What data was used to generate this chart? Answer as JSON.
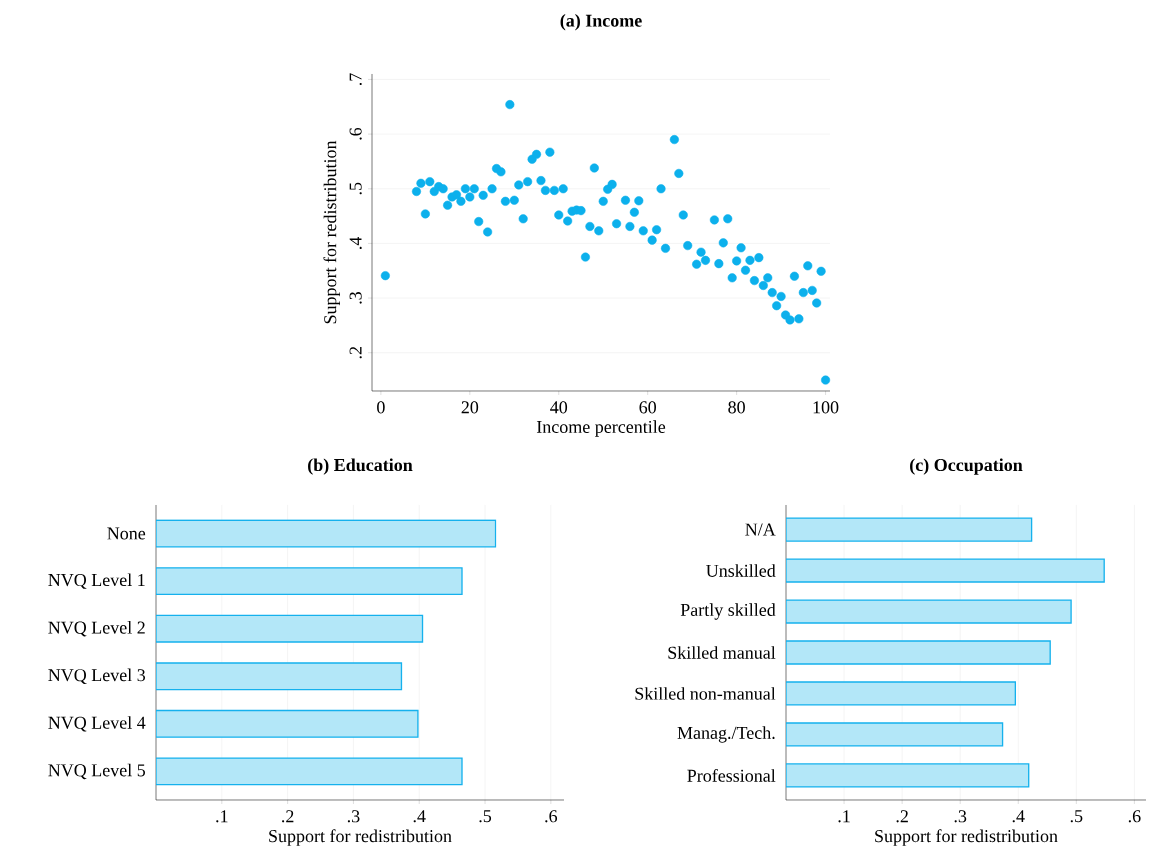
{
  "chart_data": [
    {
      "type": "scatter",
      "title": "(a) Income",
      "xlabel": "Income percentile",
      "ylabel": "Support for redistribution",
      "x": [
        1,
        8,
        9,
        10,
        11,
        12,
        13,
        14,
        15,
        16,
        17,
        18,
        19,
        20,
        21,
        22,
        23,
        24,
        25,
        26,
        27,
        28,
        29,
        30,
        31,
        32,
        33,
        34,
        35,
        36,
        37,
        38,
        39,
        40,
        41,
        42,
        43,
        44,
        45,
        46,
        47,
        48,
        49,
        50,
        51,
        52,
        53,
        55,
        56,
        57,
        58,
        59,
        61,
        62,
        63,
        64,
        66,
        67,
        68,
        69,
        71,
        72,
        73,
        75,
        76,
        77,
        78,
        79,
        80,
        81,
        82,
        83,
        84,
        85,
        86,
        87,
        88,
        89,
        90,
        91,
        92,
        93,
        94,
        95,
        96,
        97,
        98,
        99,
        100
      ],
      "values": [
        0.341,
        0.495,
        0.51,
        0.454,
        0.513,
        0.495,
        0.504,
        0.5,
        0.47,
        0.485,
        0.489,
        0.477,
        0.5,
        0.485,
        0.5,
        0.44,
        0.488,
        0.421,
        0.5,
        0.537,
        0.531,
        0.477,
        0.654,
        0.479,
        0.507,
        0.445,
        0.513,
        0.554,
        0.563,
        0.515,
        0.497,
        0.567,
        0.497,
        0.452,
        0.5,
        0.441,
        0.459,
        0.461,
        0.46,
        0.375,
        0.431,
        0.538,
        0.423,
        0.477,
        0.499,
        0.508,
        0.436,
        0.479,
        0.431,
        0.457,
        0.478,
        0.423,
        0.406,
        0.425,
        0.5,
        0.391,
        0.59,
        0.528,
        0.452,
        0.396,
        0.362,
        0.384,
        0.369,
        0.443,
        0.363,
        0.401,
        0.445,
        0.337,
        0.368,
        0.392,
        0.351,
        0.369,
        0.332,
        0.374,
        0.323,
        0.337,
        0.31,
        0.286,
        0.303,
        0.269,
        0.26,
        0.34,
        0.262,
        0.31,
        0.359,
        0.314,
        0.291,
        0.349,
        0.15
      ],
      "color": "#0cb0ec",
      "marker": "circle",
      "grid": "y",
      "xlim": [
        -2,
        101
      ],
      "xticks": [
        0,
        20,
        40,
        60,
        80,
        100
      ],
      "ylim": [
        0.13,
        0.71
      ],
      "yticks": [
        {
          "value": 0.2,
          "label": ".2"
        },
        {
          "value": 0.3,
          "label": ".3"
        },
        {
          "value": 0.4,
          "label": ".4"
        },
        {
          "value": 0.5,
          "label": ".5"
        },
        {
          "value": 0.6,
          "label": ".6"
        },
        {
          "value": 0.7,
          "label": ".7"
        }
      ]
    },
    {
      "type": "bar",
      "orientation": "horizontal",
      "title": "(b) Education",
      "xlabel": "Support for redistribution",
      "categories": [
        "None",
        "NVQ Level 1",
        "NVQ Level 2",
        "NVQ Level 3",
        "NVQ Level 4",
        "NVQ Level 5"
      ],
      "values": [
        0.516,
        0.465,
        0.405,
        0.373,
        0.398,
        0.465
      ],
      "color": "#b3e7f8",
      "grid": "x",
      "xlim": [
        0,
        0.62
      ],
      "xticks": [
        {
          "value": 0.1,
          "label": ".1"
        },
        {
          "value": 0.2,
          "label": ".2"
        },
        {
          "value": 0.3,
          "label": ".3"
        },
        {
          "value": 0.4,
          "label": ".4"
        },
        {
          "value": 0.5,
          "label": ".5"
        },
        {
          "value": 0.6,
          "label": ".6"
        }
      ]
    },
    {
      "type": "bar",
      "orientation": "horizontal",
      "title": "(c) Occupation",
      "xlabel": "Support for redistribution",
      "categories": [
        "N/A",
        "Unskilled",
        "Partly skilled",
        "Skilled manual",
        "Skilled non-manual",
        "Manag./Tech.",
        "Professional"
      ],
      "values": [
        0.423,
        0.548,
        0.491,
        0.455,
        0.395,
        0.373,
        0.418
      ],
      "color": "#b3e7f8",
      "grid": "x",
      "xlim": [
        0,
        0.62
      ],
      "xticks": [
        {
          "value": 0.1,
          "label": ".1"
        },
        {
          "value": 0.2,
          "label": ".2"
        },
        {
          "value": 0.3,
          "label": ".3"
        },
        {
          "value": 0.4,
          "label": ".4"
        },
        {
          "value": 0.5,
          "label": ".5"
        },
        {
          "value": 0.6,
          "label": ".6"
        }
      ]
    }
  ]
}
